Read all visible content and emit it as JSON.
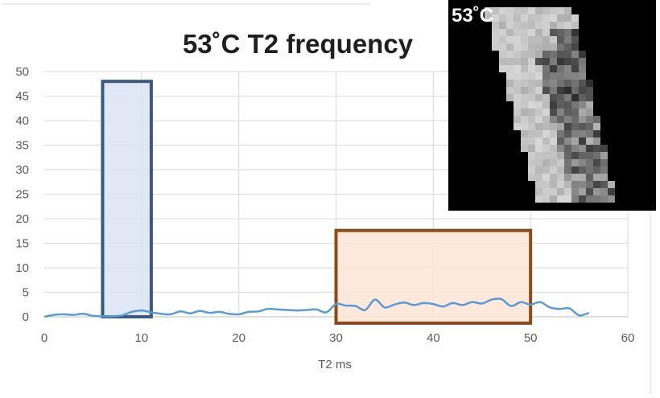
{
  "chart_data": {
    "type": "line",
    "title": "53˚C T2 frequency",
    "xlabel": "T2 ms",
    "ylabel": "",
    "xlim": [
      0,
      60
    ],
    "ylim": [
      0,
      50
    ],
    "x_ticks": [
      0,
      10,
      20,
      30,
      40,
      50,
      60
    ],
    "y_ticks": [
      0,
      5,
      10,
      15,
      20,
      25,
      30,
      35,
      40,
      45,
      50
    ],
    "grid": true,
    "legend": "none",
    "series": [
      {
        "color": "#5b9bd5",
        "x": [
          0,
          1,
          2,
          3,
          4,
          5,
          6,
          7,
          8,
          9,
          10,
          11,
          12,
          13,
          14,
          15,
          16,
          17,
          18,
          19,
          20,
          21,
          22,
          23,
          24,
          25,
          26,
          27,
          28,
          29,
          30,
          31,
          32,
          33,
          34,
          35,
          36,
          37,
          38,
          39,
          40,
          41,
          42,
          43,
          44,
          45,
          46,
          47,
          48,
          49,
          50,
          51,
          52,
          53,
          54,
          55,
          56
        ],
        "y": [
          0,
          0.4,
          0.5,
          0.4,
          0.6,
          0.2,
          0.1,
          0.1,
          0.3,
          1.0,
          1.3,
          0.9,
          0.6,
          0.5,
          1.1,
          0.7,
          1.2,
          0.8,
          1.0,
          0.6,
          0.5,
          1.0,
          1.1,
          1.6,
          1.5,
          1.4,
          1.3,
          1.4,
          1.5,
          0.9,
          2.6,
          2.3,
          2.2,
          1.4,
          3.5,
          1.9,
          2.5,
          2.9,
          2.4,
          2.8,
          2.6,
          2.1,
          2.8,
          2.4,
          3.0,
          2.7,
          3.5,
          3.6,
          2.2,
          3.0,
          2.5,
          3.0,
          1.9,
          1.6,
          1.7,
          0.3,
          0.8
        ]
      }
    ],
    "highlights": [
      {
        "x_range": [
          6,
          11
        ],
        "y_range": [
          0,
          48
        ],
        "fill": "#dae3f3",
        "stroke": "#3b5983"
      },
      {
        "x_range": [
          30,
          50
        ],
        "y_range": [
          -1.3,
          17.6
        ],
        "fill": "#fbe5d6",
        "stroke": "#8c4a1a"
      }
    ]
  },
  "inset": {
    "label": "53˚C"
  }
}
